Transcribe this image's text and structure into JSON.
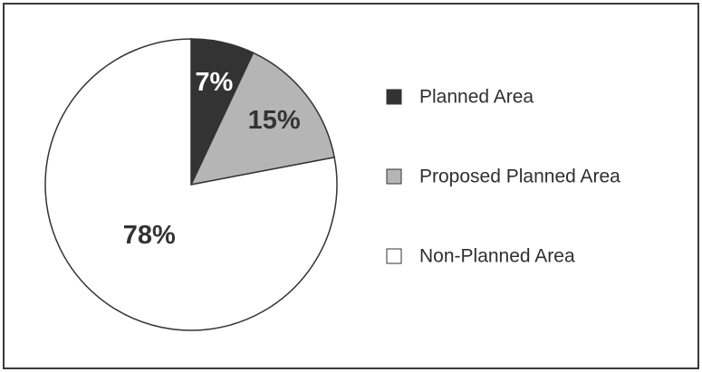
{
  "chart_data": {
    "type": "pie",
    "title": "",
    "start_angle_deg": 0,
    "direction": "clockwise",
    "legend_position": "right",
    "slices": [
      {
        "label": "Planned Area",
        "value": 7,
        "value_label": "7%",
        "color": "#333333",
        "label_color": "#ffffff"
      },
      {
        "label": "Proposed Planned Area",
        "value": 15,
        "value_label": "15%",
        "color": "#b5b5b5",
        "label_color": "#333333"
      },
      {
        "label": "Non-Planned Area",
        "value": 78,
        "value_label": "78%",
        "color": "#ffffff",
        "label_color": "#333333"
      }
    ]
  }
}
